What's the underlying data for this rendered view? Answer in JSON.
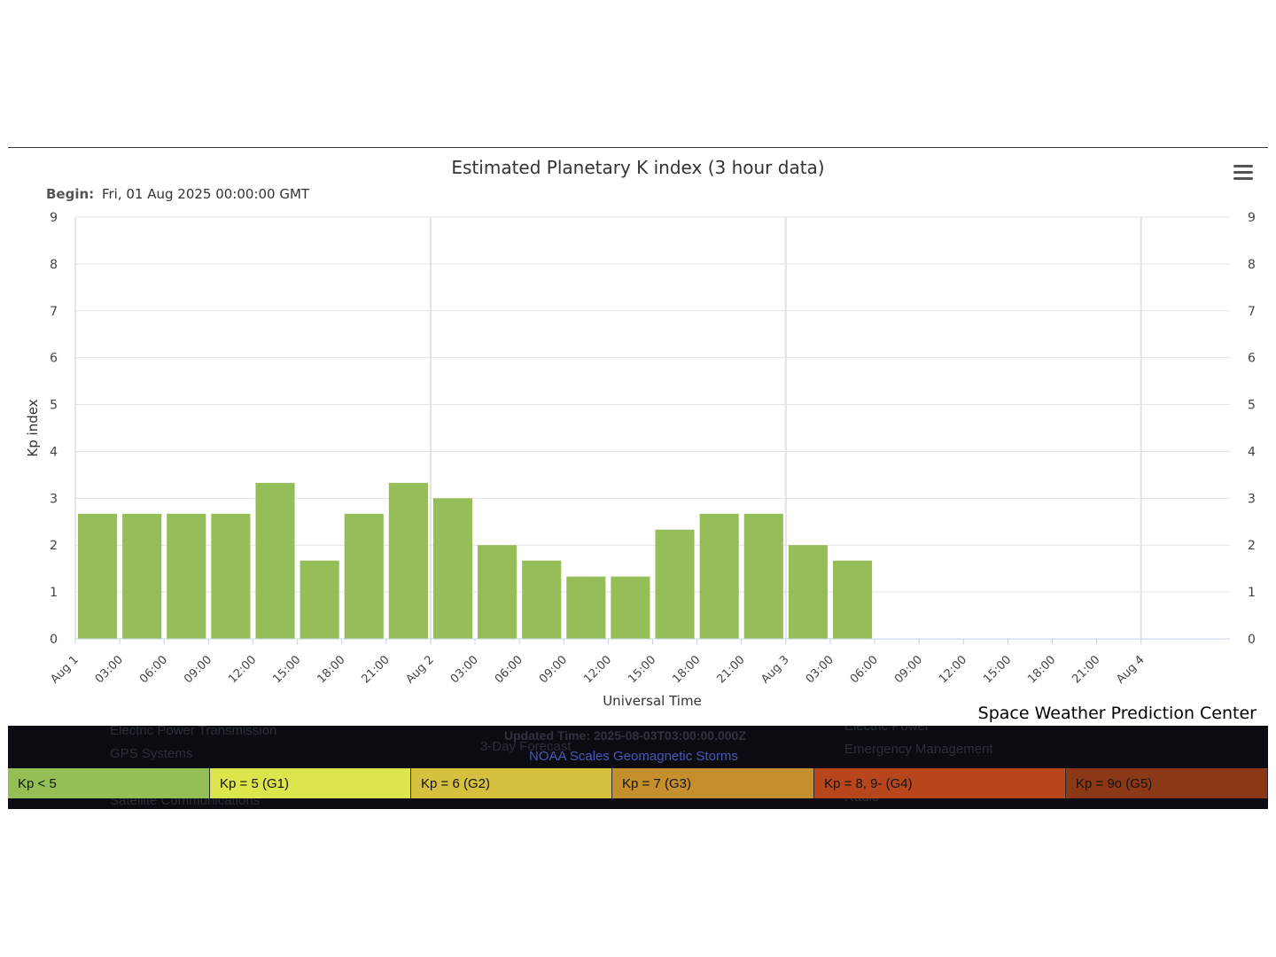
{
  "chart_data": {
    "type": "bar",
    "title": "Estimated Planetary K index (3 hour data)",
    "subtitle_label": "Begin:",
    "subtitle_value": "Fri, 01 Aug 2025 00:00:00 GMT",
    "ylabel": "Kp index",
    "xlabel": "Universal Time",
    "ylim": [
      0,
      9
    ],
    "yticks": [
      0,
      1,
      2,
      3,
      4,
      5,
      6,
      7,
      8,
      9
    ],
    "xlim": [
      "2025-08-01T00:00Z",
      "2025-08-04T06:00Z"
    ],
    "xtick_labels": [
      "Aug 1",
      "03:00",
      "06:00",
      "09:00",
      "12:00",
      "15:00",
      "18:00",
      "21:00",
      "Aug 2",
      "03:00",
      "06:00",
      "09:00",
      "12:00",
      "15:00",
      "18:00",
      "21:00",
      "Aug 3",
      "03:00",
      "06:00",
      "09:00",
      "12:00",
      "15:00",
      "18:00",
      "21:00",
      "Aug 4"
    ],
    "categories": [
      "2025-08-01T00:00Z",
      "2025-08-01T03:00Z",
      "2025-08-01T06:00Z",
      "2025-08-01T09:00Z",
      "2025-08-01T12:00Z",
      "2025-08-01T15:00Z",
      "2025-08-01T18:00Z",
      "2025-08-01T21:00Z",
      "2025-08-02T00:00Z",
      "2025-08-02T03:00Z",
      "2025-08-02T06:00Z",
      "2025-08-02T09:00Z",
      "2025-08-02T12:00Z",
      "2025-08-02T15:00Z",
      "2025-08-02T18:00Z",
      "2025-08-02T21:00Z",
      "2025-08-03T00:00Z",
      "2025-08-03T03:00Z"
    ],
    "values": [
      2.67,
      2.67,
      2.67,
      2.67,
      3.33,
      1.67,
      2.67,
      3.33,
      3.0,
      2.0,
      1.67,
      1.33,
      1.33,
      2.33,
      2.67,
      2.67,
      2.0,
      1.67
    ],
    "bar_color": "#95be58",
    "grid": true,
    "secondary_y_axis": true
  },
  "credit": "Space Weather Prediction Center",
  "updated_time": "Updated Time: 2025-08-03T03:00:00.000Z",
  "noaa_link": "NOAA Scales Geomagnetic Storms",
  "background_text": [
    "Electric Power Transmission",
    "GPS Systems",
    "Satellite Communications",
    "3-Day Forecast",
    "Electric Power",
    "Emergency Management",
    "Radio"
  ],
  "legend": [
    {
      "label": "Kp < 5",
      "color": "#93bf55"
    },
    {
      "label": "Kp = 5 (G1)",
      "color": "#dbe54c"
    },
    {
      "label": "Kp = 6 (G2)",
      "color": "#d5c03f"
    },
    {
      "label": "Kp = 7 (G3)",
      "color": "#c58f2e"
    },
    {
      "label": "Kp = 8, 9- (G4)",
      "color": "#b8461c"
    },
    {
      "label": "Kp = 9o (G5)",
      "color": "#8b3816"
    }
  ],
  "menu_icon": "hamburger-menu-icon"
}
